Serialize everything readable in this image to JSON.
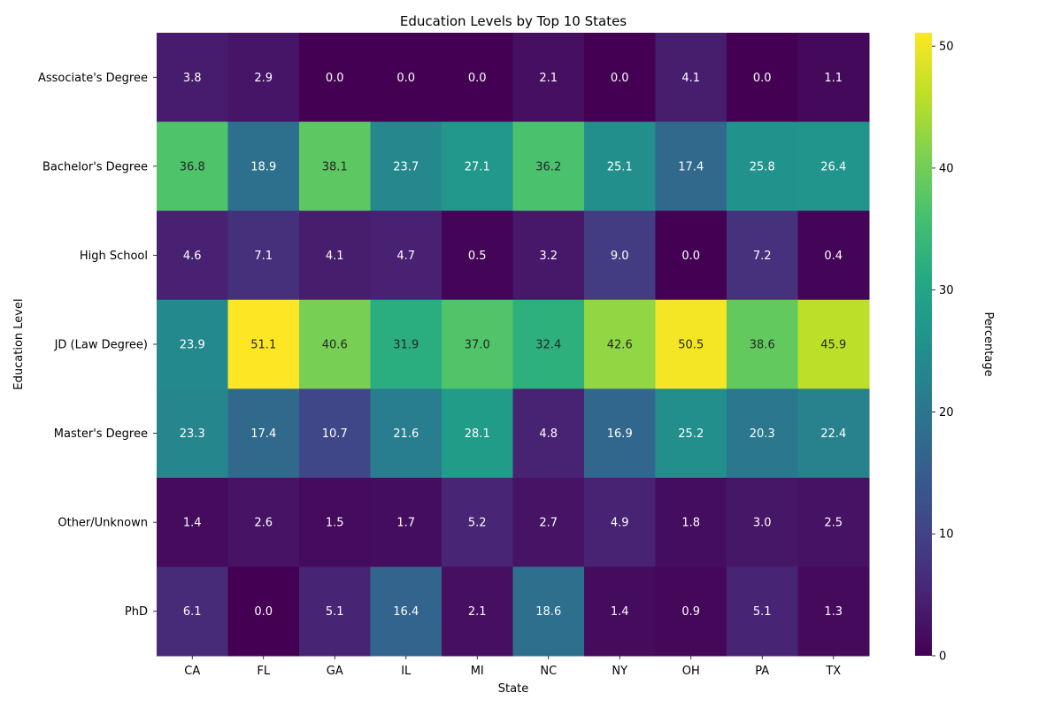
{
  "chart_data": {
    "type": "heatmap",
    "title": "Education Levels by Top 10 States",
    "xlabel": "State",
    "ylabel": "Education Level",
    "colorbar_label": "Percentage",
    "colormap": "viridis",
    "vmin": 0,
    "vmax": 51.1,
    "colorbar_ticks": [
      0,
      10,
      20,
      30,
      40,
      50
    ],
    "x": [
      "CA",
      "FL",
      "GA",
      "IL",
      "MI",
      "NC",
      "NY",
      "OH",
      "PA",
      "TX"
    ],
    "y": [
      "Associate's Degree",
      "Bachelor's Degree",
      "High School",
      "JD (Law Degree)",
      "Master's Degree",
      "Other/Unknown",
      "PhD"
    ],
    "values": [
      [
        3.8,
        2.9,
        0.0,
        0.0,
        0.0,
        2.1,
        0.0,
        4.1,
        0.0,
        1.1
      ],
      [
        36.8,
        18.9,
        38.1,
        23.7,
        27.1,
        36.2,
        25.1,
        17.4,
        25.8,
        26.4
      ],
      [
        4.6,
        7.1,
        4.1,
        4.7,
        0.5,
        3.2,
        9.0,
        0.0,
        7.2,
        0.4
      ],
      [
        23.9,
        51.1,
        40.6,
        31.9,
        37.0,
        32.4,
        42.6,
        50.5,
        38.6,
        45.9
      ],
      [
        23.3,
        17.4,
        10.7,
        21.6,
        28.1,
        4.8,
        16.9,
        25.2,
        20.3,
        22.4
      ],
      [
        1.4,
        2.6,
        1.5,
        1.7,
        5.2,
        2.7,
        4.9,
        1.8,
        3.0,
        2.5
      ],
      [
        6.1,
        0.0,
        5.1,
        16.4,
        2.1,
        18.6,
        1.4,
        0.9,
        5.1,
        1.3
      ]
    ]
  }
}
